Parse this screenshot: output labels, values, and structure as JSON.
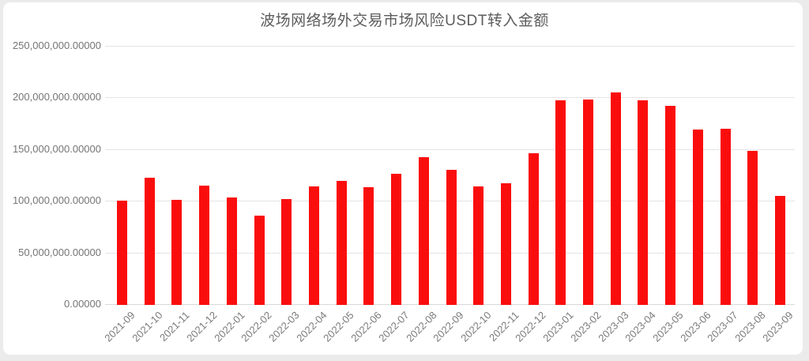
{
  "page": {
    "background_color": "#ebebeb",
    "card_background_color": "#ffffff"
  },
  "chart_data": {
    "type": "bar",
    "title": "波场网络场外交易市场风险USDT转入金额",
    "xlabel": "",
    "ylabel": "",
    "legend": "none",
    "grid": "horizontal",
    "bar_color": "#fa0d0d",
    "ylim": [
      0,
      250000000
    ],
    "y_ticks": [
      {
        "value": 0,
        "label": "0.00000"
      },
      {
        "value": 50000000,
        "label": "50,000,000.00000"
      },
      {
        "value": 100000000,
        "label": "100,000,000.00000"
      },
      {
        "value": 150000000,
        "label": "150,000,000.00000"
      },
      {
        "value": 200000000,
        "label": "200,000,000.00000"
      },
      {
        "value": 250000000,
        "label": "250,000,000.00000"
      }
    ],
    "categories": [
      "2021-09",
      "2021-10",
      "2021-11",
      "2021-12",
      "2022-01",
      "2022-02",
      "2022-03",
      "2022-04",
      "2022-05",
      "2022-06",
      "2022-07",
      "2022-08",
      "2022-09",
      "2022-10",
      "2022-11",
      "2022-12",
      "2023-01",
      "2023-02",
      "2023-03",
      "2023-04",
      "2023-05",
      "2023-06",
      "2023-07",
      "2023-08",
      "2023-09"
    ],
    "values": [
      100000000,
      122000000,
      101000000,
      115000000,
      103000000,
      86000000,
      102000000,
      114000000,
      119000000,
      113000000,
      126000000,
      142000000,
      130000000,
      114000000,
      117000000,
      146000000,
      197000000,
      198000000,
      205000000,
      197000000,
      192000000,
      169000000,
      170000000,
      148000000,
      105000000
    ]
  }
}
